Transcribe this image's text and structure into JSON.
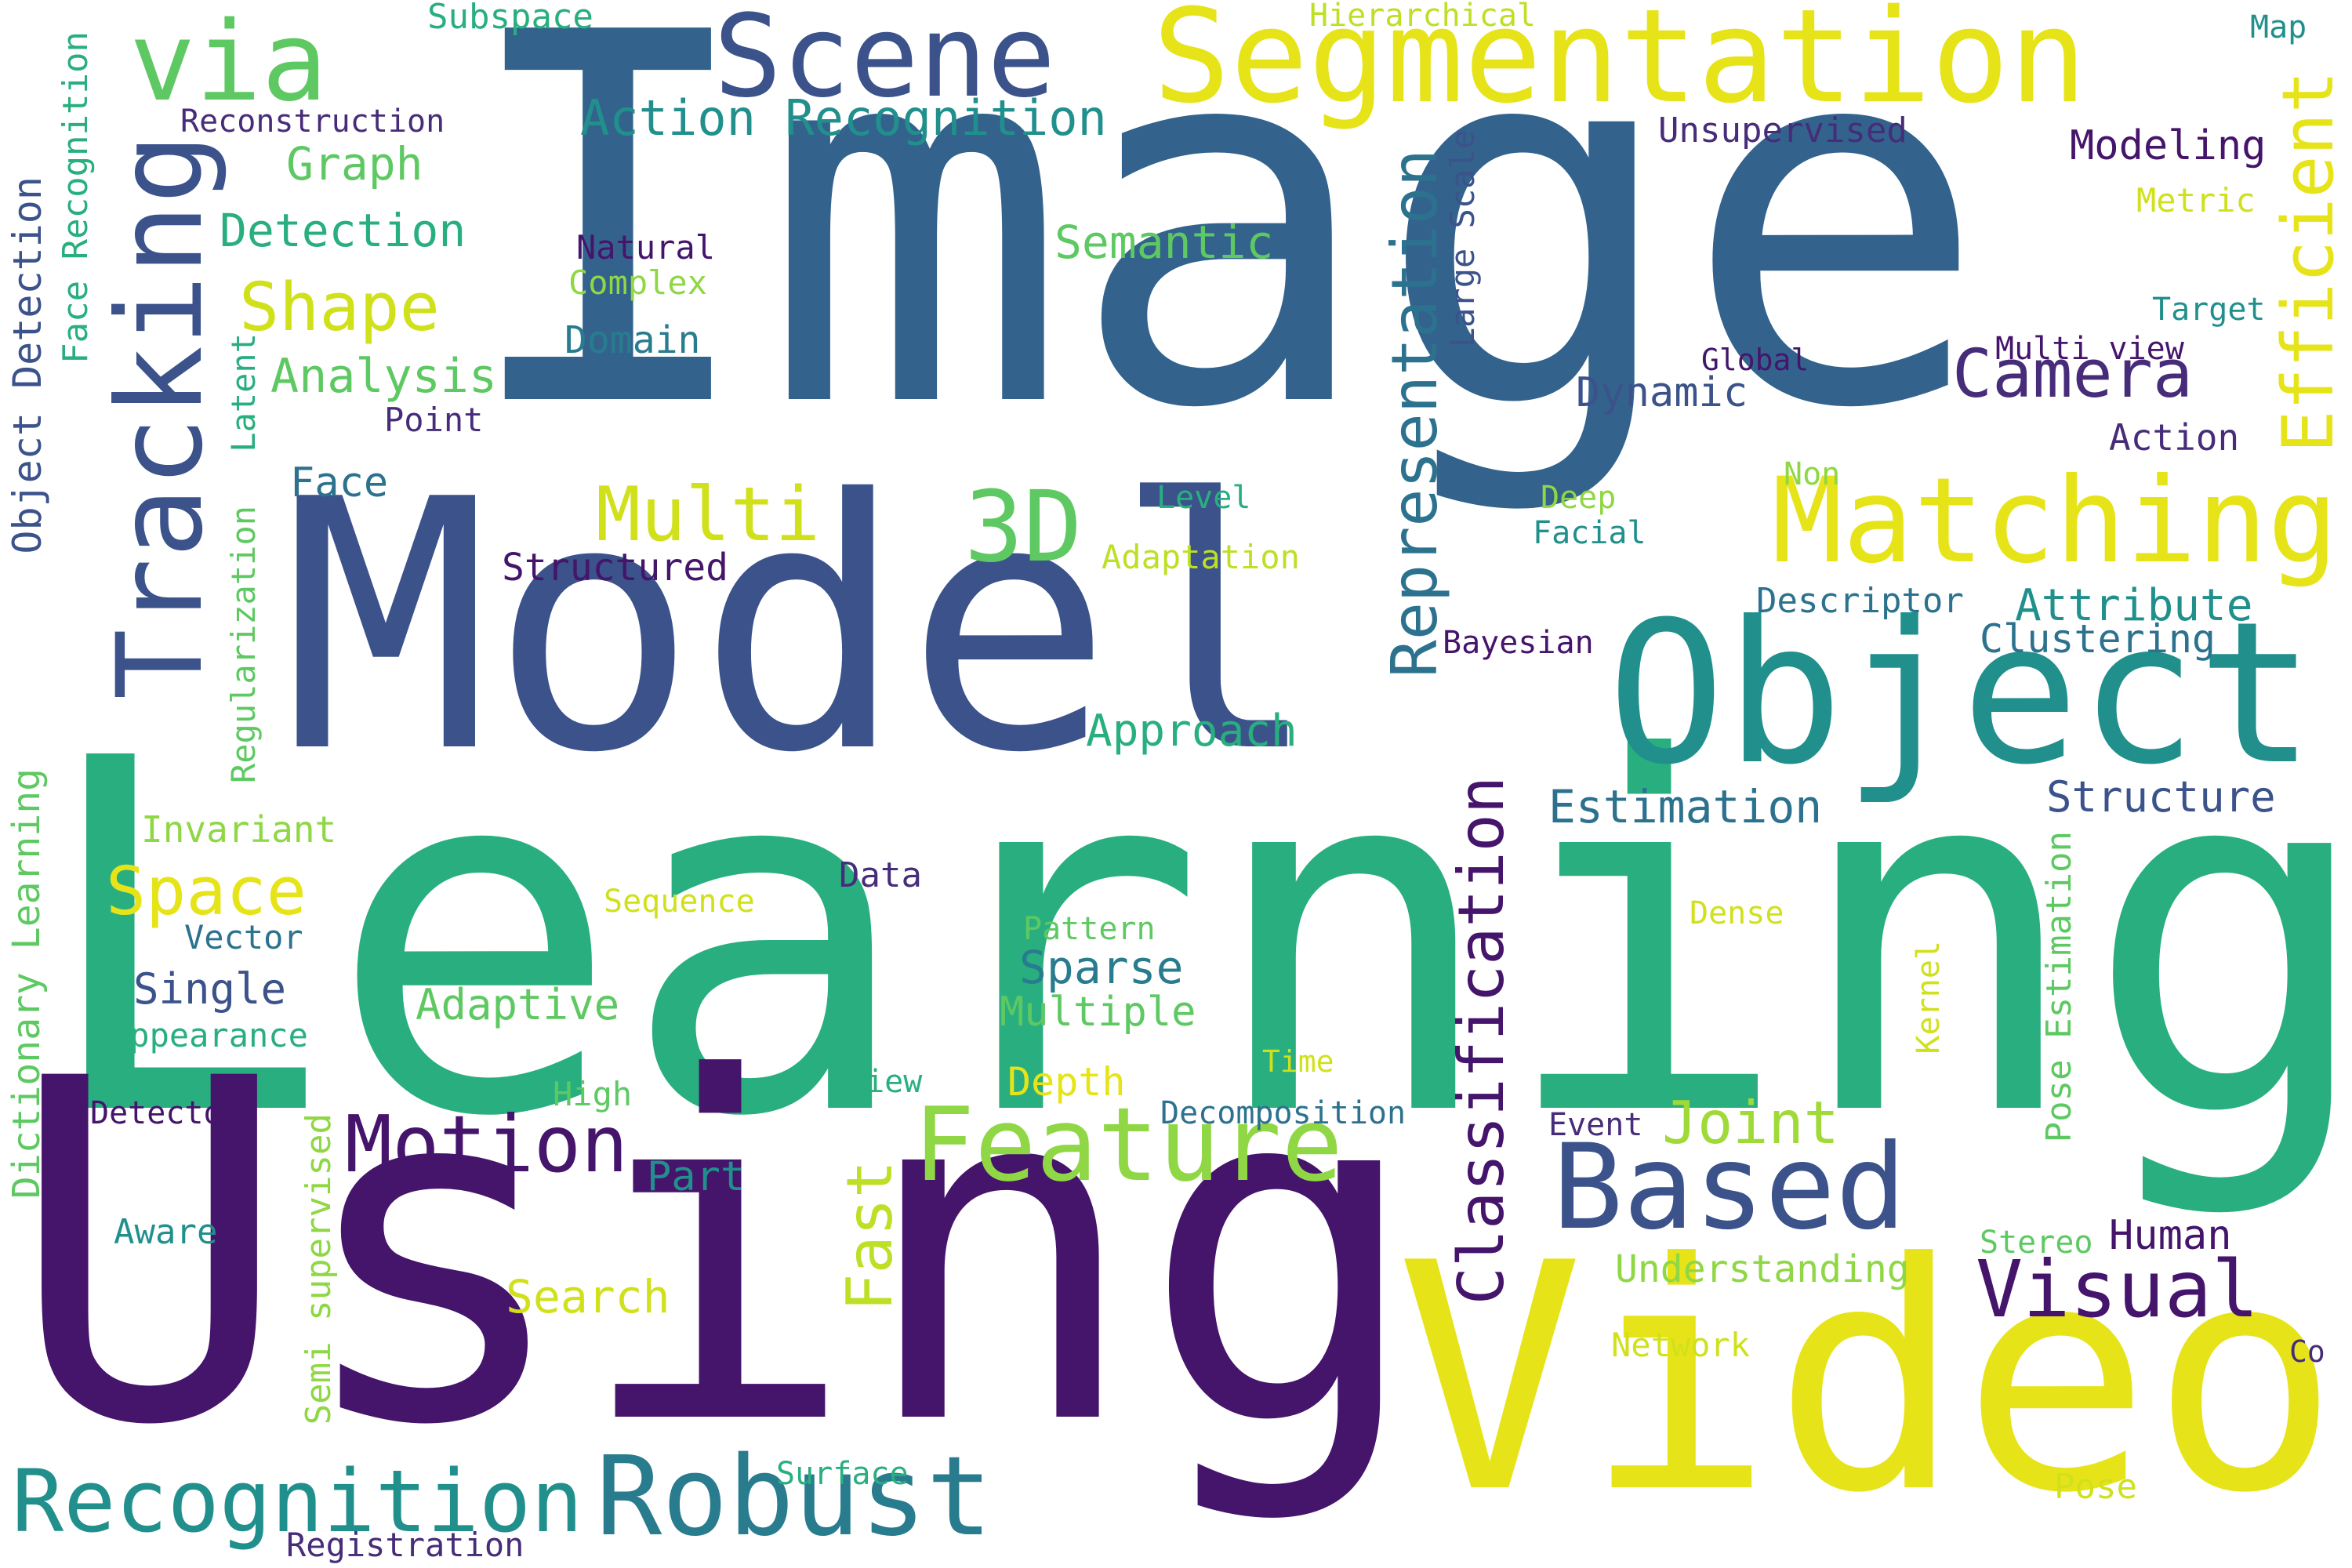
{
  "palette": {
    "indigo": "#45146b",
    "blue": "#2f5f8d",
    "navy": "#3b528b",
    "teal": "#21908d",
    "green": "#29af7f",
    "lime": "#8fd744",
    "yellow": "#e6e419",
    "purple": "#472c7a"
  },
  "words": [
    {
      "text": "Image",
      "color": "#33638d"
    },
    {
      "text": "Learning",
      "color": "#29af7f"
    },
    {
      "text": "Using",
      "color": "#45146b"
    },
    {
      "text": "Model",
      "color": "#3b528b"
    },
    {
      "text": "Video",
      "color": "#e6e419"
    },
    {
      "text": "Object",
      "color": "#21908d"
    },
    {
      "text": "Segmentation",
      "color": "#e6e419"
    },
    {
      "text": "Tracking",
      "color": "#3b528b"
    },
    {
      "text": "Matching",
      "color": "#e6e419"
    },
    {
      "text": "Scene",
      "color": "#3b528b"
    },
    {
      "text": "via",
      "color": "#5ec962"
    },
    {
      "text": "Based",
      "color": "#3b528b"
    },
    {
      "text": "Feature",
      "color": "#8fd744"
    },
    {
      "text": "Robust",
      "color": "#287c8e"
    },
    {
      "text": "Recognition",
      "color": "#21908d"
    },
    {
      "text": "Representation",
      "color": "#2c728e"
    },
    {
      "text": "Classification",
      "color": "#45146b"
    },
    {
      "text": "Efficient",
      "color": "#e6e419"
    },
    {
      "text": "3D",
      "color": "#5ec962"
    },
    {
      "text": "Multi",
      "color": "#d0e11c"
    },
    {
      "text": "Motion",
      "color": "#45146b"
    },
    {
      "text": "Camera",
      "color": "#472c7a"
    },
    {
      "text": "Visual",
      "color": "#45146b"
    },
    {
      "text": "Joint",
      "color": "#a0da39"
    },
    {
      "text": "Fast",
      "color": "#bddf26"
    },
    {
      "text": "Space",
      "color": "#e6e419"
    },
    {
      "text": "Shape",
      "color": "#d0e11c"
    },
    {
      "text": "Action Recognition",
      "color": "#21908d"
    },
    {
      "text": "Detection",
      "color": "#29af7f"
    },
    {
      "text": "Analysis",
      "color": "#5ec962"
    },
    {
      "text": "Graph",
      "color": "#5ec962"
    },
    {
      "text": "Semantic",
      "color": "#5ec962"
    },
    {
      "text": "Estimation",
      "color": "#2c728e"
    },
    {
      "text": "Structure",
      "color": "#3b528b"
    },
    {
      "text": "Sparse",
      "color": "#287c8e"
    },
    {
      "text": "Approach",
      "color": "#29af7f"
    },
    {
      "text": "Attribute",
      "color": "#21908d"
    },
    {
      "text": "Modeling",
      "color": "#45146b"
    },
    {
      "text": "Dynamic",
      "color": "#3b528b"
    },
    {
      "text": "Clustering",
      "color": "#2c728e"
    },
    {
      "text": "Understanding",
      "color": "#8fd744"
    },
    {
      "text": "Structured",
      "color": "#45146b"
    },
    {
      "text": "Adaptive",
      "color": "#5ec962"
    },
    {
      "text": "Multiple",
      "color": "#5ec962"
    },
    {
      "text": "Single",
      "color": "#3b528b"
    },
    {
      "text": "Search",
      "color": "#d0e11c"
    },
    {
      "text": "Face",
      "color": "#2c728e"
    },
    {
      "text": "Domain",
      "color": "#287c8e"
    },
    {
      "text": "Part",
      "color": "#21908d"
    },
    {
      "text": "Human",
      "color": "#45146b"
    },
    {
      "text": "Depth",
      "color": "#e6e419"
    },
    {
      "text": "Appearance",
      "color": "#29af7f"
    },
    {
      "text": "Invariant",
      "color": "#8fd744"
    },
    {
      "text": "Registration",
      "color": "#472c7a"
    },
    {
      "text": "Subspace",
      "color": "#29af7f"
    },
    {
      "text": "Reconstruction",
      "color": "#472c7a"
    },
    {
      "text": "Unsupervised",
      "color": "#472c7a"
    },
    {
      "text": "Metric",
      "color": "#d0e11c"
    },
    {
      "text": "Hierarchical",
      "color": "#bddf26"
    },
    {
      "text": "Map",
      "color": "#21908d"
    },
    {
      "text": "Target",
      "color": "#21908d"
    },
    {
      "text": "Multi view",
      "color": "#45146b"
    },
    {
      "text": "Global",
      "color": "#45146b"
    },
    {
      "text": "Action",
      "color": "#472c7a"
    },
    {
      "text": "Non",
      "color": "#8fd744"
    },
    {
      "text": "Deep",
      "color": "#8fd744"
    },
    {
      "text": "Facial",
      "color": "#21908d"
    },
    {
      "text": "Descriptor",
      "color": "#2c728e"
    },
    {
      "text": "Bayesian",
      "color": "#45146b"
    },
    {
      "text": "Natural",
      "color": "#45146b"
    },
    {
      "text": "Complex",
      "color": "#8fd744"
    },
    {
      "text": "Point",
      "color": "#472c7a"
    },
    {
      "text": "Level",
      "color": "#29af7f"
    },
    {
      "text": "Adaptation",
      "color": "#bddf26"
    },
    {
      "text": "Data",
      "color": "#472c7a"
    },
    {
      "text": "Sequence",
      "color": "#d0e11c"
    },
    {
      "text": "Pattern",
      "color": "#5ec962"
    },
    {
      "text": "Vector",
      "color": "#2c728e"
    },
    {
      "text": "Dense",
      "color": "#d0e11c"
    },
    {
      "text": "High",
      "color": "#5ec962"
    },
    {
      "text": "view",
      "color": "#29af7f"
    },
    {
      "text": "Time",
      "color": "#d0e11c"
    },
    {
      "text": "Decomposition",
      "color": "#2c728e"
    },
    {
      "text": "Event",
      "color": "#472c7a"
    },
    {
      "text": "Detector",
      "color": "#45146b"
    },
    {
      "text": "Aware",
      "color": "#21908d"
    },
    {
      "text": "Stereo",
      "color": "#5ec962"
    },
    {
      "text": "Network",
      "color": "#d0e11c"
    },
    {
      "text": "Co",
      "color": "#472c7a"
    },
    {
      "text": "Surface",
      "color": "#29af7f"
    },
    {
      "text": "Pose",
      "color": "#d0e11c"
    },
    {
      "text": "Object Detection",
      "color": "#3b528b"
    },
    {
      "text": "Face Recognition",
      "color": "#29af7f"
    },
    {
      "text": "Latent",
      "color": "#29af7f"
    },
    {
      "text": "Regularization",
      "color": "#5ec962"
    },
    {
      "text": "Dictionary Learning",
      "color": "#5ec962"
    },
    {
      "text": "Semi supervised",
      "color": "#8fd744"
    },
    {
      "text": "Large Scale",
      "color": "#3b528b"
    },
    {
      "text": "Kernel",
      "color": "#d0e11c"
    },
    {
      "text": "Pose Estimation",
      "color": "#5ec962"
    }
  ]
}
